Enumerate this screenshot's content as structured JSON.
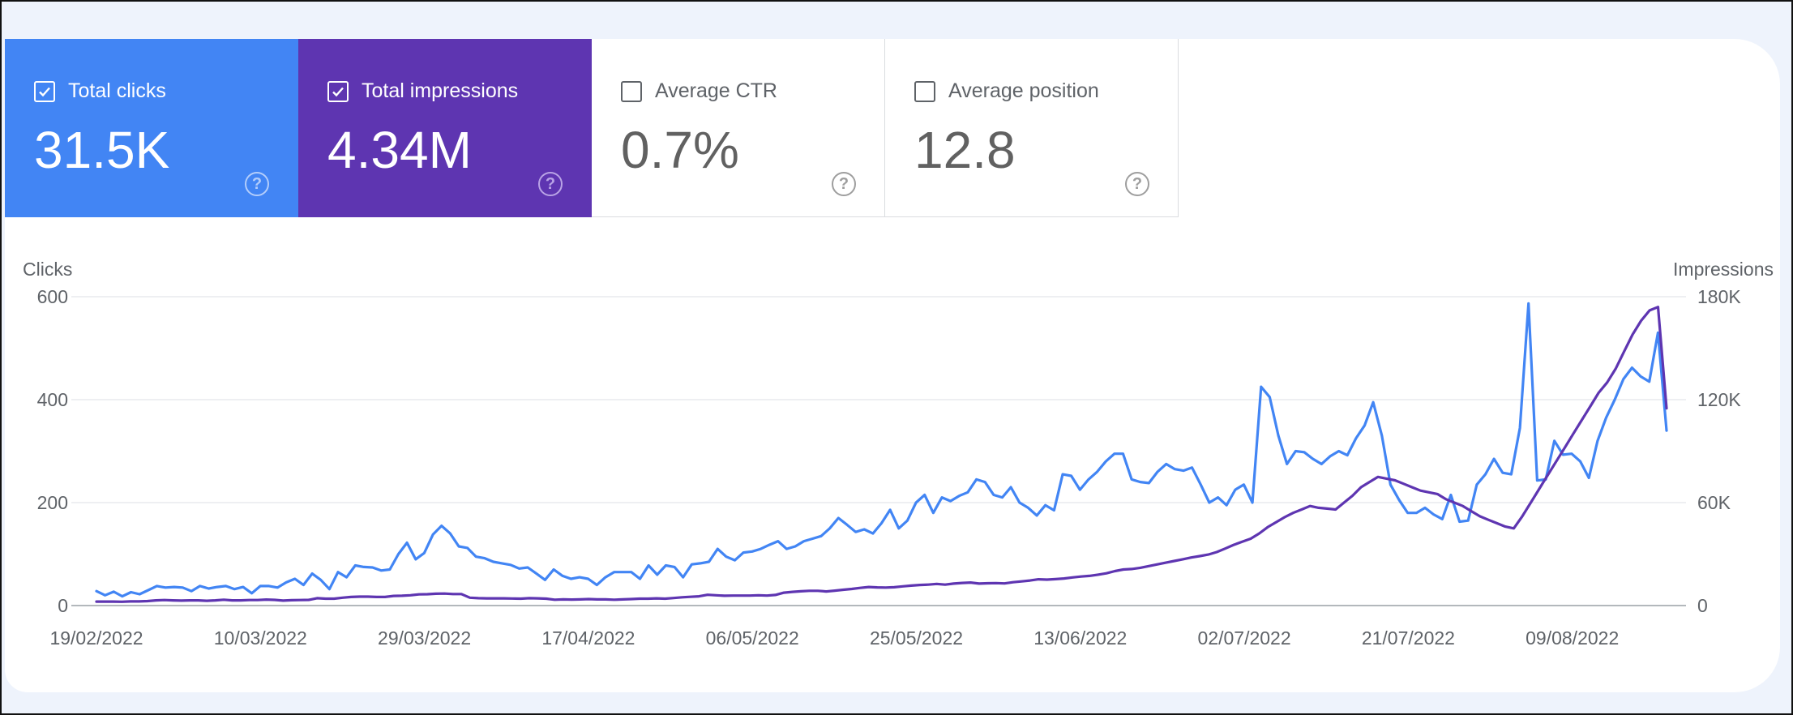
{
  "metrics": [
    {
      "label": "Total clicks",
      "value": "31.5K",
      "checked": true
    },
    {
      "label": "Total impressions",
      "value": "4.34M",
      "checked": true
    },
    {
      "label": "Average CTR",
      "value": "0.7%",
      "checked": false
    },
    {
      "label": "Average position",
      "value": "12.8",
      "checked": false
    }
  ],
  "help_icon_glyph": "?",
  "colors": {
    "clicks": "#4285f4",
    "impressions": "#5e35b1",
    "grid": "#e8eaed",
    "text": "#5f6368"
  },
  "chart_data": {
    "type": "line",
    "ylabel_left": "Clicks",
    "ylabel_right": "Impressions",
    "yticks_left": [
      "0",
      "200",
      "400",
      "600"
    ],
    "yticks_right": [
      "0",
      "60K",
      "120K",
      "180K"
    ],
    "ylim_left": [
      0,
      600
    ],
    "ylim_right": [
      0,
      180000
    ],
    "xticks": [
      "19/02/2022",
      "10/03/2022",
      "29/03/2022",
      "17/04/2022",
      "06/05/2022",
      "25/05/2022",
      "13/06/2022",
      "02/07/2022",
      "21/07/2022",
      "09/08/2022"
    ],
    "series": [
      {
        "name": "Total clicks",
        "axis": "left",
        "values": [
          28,
          20,
          27,
          18,
          26,
          22,
          30,
          38,
          35,
          36,
          35,
          28,
          38,
          33,
          36,
          38,
          32,
          36,
          24,
          38,
          38,
          35,
          45,
          52,
          40,
          62,
          50,
          32,
          65,
          55,
          78,
          75,
          74,
          68,
          70,
          100,
          122,
          90,
          102,
          138,
          155,
          140,
          115,
          112,
          95,
          92,
          85,
          82,
          79,
          72,
          74,
          62,
          50,
          70,
          58,
          52,
          55,
          52,
          40,
          55,
          65,
          65,
          65,
          52,
          78,
          60,
          78,
          75,
          55,
          80,
          82,
          85,
          110,
          95,
          88,
          103,
          105,
          110,
          118,
          125,
          110,
          115,
          125,
          130,
          135,
          150,
          170,
          157,
          143,
          148,
          140,
          160,
          186,
          150,
          165,
          200,
          215,
          180,
          210,
          203,
          213,
          220,
          245,
          240,
          215,
          210,
          230,
          200,
          190,
          175,
          195,
          185,
          255,
          252,
          225,
          245,
          260,
          280,
          295,
          295,
          245,
          240,
          238,
          260,
          275,
          265,
          262,
          268,
          235,
          200,
          210,
          195,
          225,
          235,
          200,
          425,
          405,
          330,
          275,
          300,
          298,
          285,
          275,
          290,
          300,
          292,
          325,
          350,
          395,
          330,
          235,
          205,
          180,
          180,
          190,
          177,
          168,
          215,
          163,
          165,
          235,
          255,
          285,
          258,
          255,
          345,
          587,
          243,
          245,
          320,
          293,
          295,
          280,
          248,
          320,
          365,
          400,
          440,
          462,
          445,
          435,
          530,
          340
        ]
      },
      {
        "name": "Total impressions",
        "axis": "right",
        "values": [
          2300,
          2300,
          2300,
          2200,
          2400,
          2400,
          2600,
          3000,
          3200,
          3000,
          2900,
          3000,
          3000,
          2800,
          3000,
          3400,
          3000,
          3000,
          3200,
          3200,
          3500,
          3300,
          2900,
          3100,
          3200,
          3300,
          4300,
          4000,
          4000,
          4600,
          5000,
          5200,
          5200,
          5000,
          5000,
          5600,
          5700,
          6000,
          6500,
          6600,
          6900,
          7000,
          6700,
          6700,
          4600,
          4300,
          4200,
          4200,
          4200,
          4100,
          4000,
          4300,
          4200,
          4000,
          3400,
          3600,
          3500,
          3600,
          3800,
          3600,
          3600,
          3400,
          3600,
          3800,
          4000,
          4000,
          4200,
          4000,
          4400,
          4800,
          5100,
          5400,
          6300,
          6000,
          5700,
          5800,
          5800,
          5800,
          6000,
          5800,
          6200,
          7500,
          8000,
          8300,
          8600,
          8600,
          8200,
          8700,
          9200,
          9700,
          10300,
          10800,
          10600,
          10500,
          10700,
          11200,
          11600,
          12000,
          12200,
          12600,
          12200,
          12800,
          13200,
          13400,
          12800,
          13000,
          13100,
          12900,
          13600,
          14100,
          14600,
          15300,
          15100,
          15400,
          15800,
          16400,
          16900,
          17300,
          18000,
          18800,
          20100,
          21000,
          21300,
          22000,
          23000,
          24000,
          25000,
          26000,
          27000,
          28000,
          28800,
          29700,
          31200,
          33200,
          35400,
          37200,
          39000,
          42000,
          45700,
          48600,
          51500,
          54000,
          56000,
          58000,
          57000,
          56500,
          56000,
          60000,
          64000,
          69000,
          72000,
          75000,
          74000,
          73000,
          71000,
          69000,
          67000,
          66000,
          65000,
          62000,
          60000,
          58000,
          55000,
          52000,
          50000,
          48000,
          46000,
          45000,
          52000,
          60000,
          68000,
          76000,
          84000,
          92000,
          100000,
          108000,
          116000,
          124000,
          130000,
          138000,
          148000,
          158000,
          166000,
          172000,
          174000,
          115000
        ]
      }
    ],
    "grid": true,
    "legend": "none"
  }
}
